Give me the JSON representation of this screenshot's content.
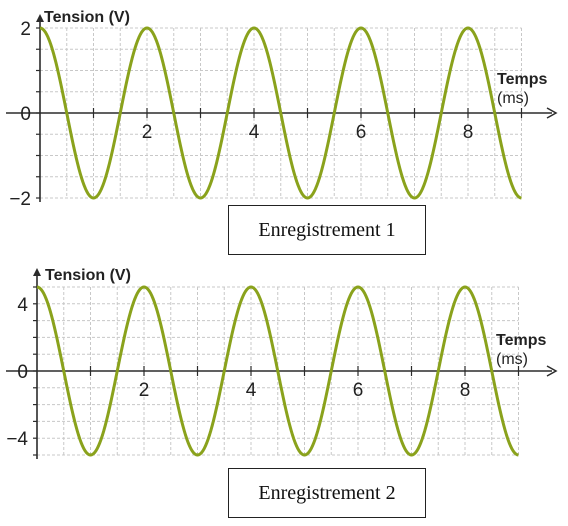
{
  "chart_data": [
    {
      "type": "line",
      "ylabel": "Tension (V)",
      "xlabel_line1": "Temps",
      "xlabel_line2": "(ms)",
      "x_ticks": [
        2,
        4,
        6,
        8
      ],
      "y_ticks": [
        2,
        0,
        -2
      ],
      "y_tick_labels": [
        "2",
        "0",
        "−2"
      ],
      "xlim": [
        0,
        9
      ],
      "ylim": [
        -2,
        2
      ],
      "grid": true,
      "series": [
        {
          "amplitude": 2,
          "period": 2,
          "phase": "cosine",
          "x_range": [
            0,
            9
          ],
          "color": "#8aa21c"
        }
      ],
      "caption": "Enregistrement 1"
    },
    {
      "type": "line",
      "ylabel": "Tension (V)",
      "xlabel_line1": "Temps",
      "xlabel_line2": "(ms)",
      "x_ticks": [
        2,
        4,
        6,
        8
      ],
      "y_ticks": [
        4,
        0,
        -4
      ],
      "y_tick_labels": [
        "4",
        "0",
        "−4"
      ],
      "xlim": [
        0,
        9
      ],
      "ylim": [
        -5,
        5
      ],
      "grid": true,
      "series": [
        {
          "amplitude": 5,
          "period": 2,
          "phase": "cosine",
          "x_range": [
            0,
            9
          ],
          "color": "#8aa21c"
        }
      ],
      "caption": "Enregistrement 2"
    }
  ]
}
